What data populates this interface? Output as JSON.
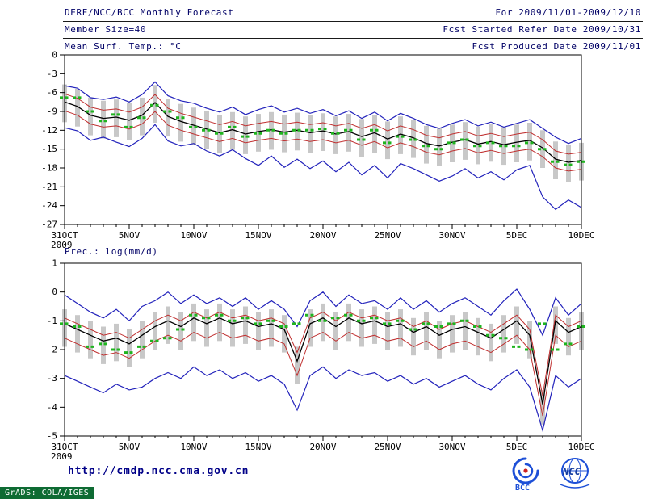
{
  "header": {
    "title": "DERF/NCC/BCC Monthly Forecast",
    "member_size": "Member Size=40",
    "for_range": "For 2009/11/01-2009/12/10",
    "fcst_started": "Fcst Started Refer Date 2009/10/31",
    "fcst_produced": "Fcst Produced Date 2009/11/01"
  },
  "footer": {
    "url": "http://cmdp.ncc.cma.gov.cn",
    "grads_credit": "GrADS: COLA/IGES",
    "logo_bcc": "BCC",
    "logo_ncc": "NCC"
  },
  "colors": {
    "header_text": "#000066",
    "axis": "#000000",
    "ensemble_envelope": "#2222bb",
    "spread_band": "#c03030",
    "ensemble_mean": "#000000",
    "observation": "#1fb41f",
    "spread_bars": "#c8c8c8",
    "url_text": "#000088",
    "grads_bg": "#0e6b33"
  },
  "chart_data": [
    {
      "type": "line",
      "title": "Mean Surf. Temp.: °C",
      "ylim": [
        -27,
        0
      ],
      "yticks": [
        0,
        -3,
        -6,
        -9,
        -12,
        -15,
        -18,
        -21,
        -24,
        -27
      ],
      "x_days": 40,
      "x_tick_days": [
        0,
        5,
        10,
        15,
        20,
        25,
        30,
        35,
        40
      ],
      "x_tick_labels": [
        "31OCT",
        "5NOV",
        "10NOV",
        "15NOV",
        "20NOV",
        "25NOV",
        "30NOV",
        "5DEC",
        "10DEC"
      ],
      "x_year_label": "2009",
      "series": [
        {
          "name": "ensemble-max",
          "color": "#2222bb",
          "width": 1.2,
          "values": [
            -4.9,
            -5.3,
            -6.8,
            -7.1,
            -6.7,
            -7.5,
            -6.3,
            -4.3,
            -6.5,
            -7.3,
            -7.7,
            -8.5,
            -9.1,
            -8.3,
            -9.5,
            -8.7,
            -8.1,
            -9.1,
            -8.5,
            -9.3,
            -8.7,
            -9.7,
            -8.9,
            -10.1,
            -9.1,
            -10.5,
            -9.3,
            -10.1,
            -11.1,
            -11.7,
            -10.9,
            -10.3,
            -11.3,
            -10.7,
            -11.5,
            -10.9,
            -10.3,
            -11.7,
            -13.1,
            -14.1,
            -13.3
          ]
        },
        {
          "name": "upper-spread",
          "color": "#c03030",
          "width": 1,
          "values": [
            -6.2,
            -6.9,
            -8.3,
            -8.8,
            -8.6,
            -9.1,
            -8.3,
            -6.3,
            -8.5,
            -9.3,
            -9.9,
            -10.5,
            -11.1,
            -10.6,
            -11.3,
            -10.9,
            -10.6,
            -11.0,
            -10.7,
            -11.1,
            -10.8,
            -11.3,
            -10.9,
            -11.7,
            -11.1,
            -12.1,
            -11.3,
            -11.9,
            -12.8,
            -13.2,
            -12.6,
            -12.2,
            -12.9,
            -12.5,
            -13.0,
            -12.6,
            -12.3,
            -13.5,
            -15.3,
            -15.8,
            -15.5
          ]
        },
        {
          "name": "ensemble-mean",
          "color": "#000000",
          "width": 1.3,
          "values": [
            -7.5,
            -8.2,
            -9.6,
            -10.1,
            -9.9,
            -10.4,
            -9.6,
            -7.6,
            -9.8,
            -10.6,
            -11.2,
            -11.8,
            -12.4,
            -11.9,
            -12.6,
            -12.2,
            -11.9,
            -12.3,
            -12.0,
            -12.4,
            -12.1,
            -12.6,
            -12.2,
            -13.0,
            -12.4,
            -13.4,
            -12.6,
            -13.2,
            -14.1,
            -14.5,
            -13.9,
            -13.5,
            -14.2,
            -13.8,
            -14.3,
            -13.9,
            -13.6,
            -14.8,
            -16.6,
            -17.1,
            -16.8
          ]
        },
        {
          "name": "lower-spread",
          "color": "#c03030",
          "width": 1,
          "values": [
            -8.9,
            -9.6,
            -11.0,
            -11.5,
            -11.3,
            -11.8,
            -11.0,
            -9.0,
            -11.2,
            -12.0,
            -12.6,
            -13.2,
            -13.8,
            -13.3,
            -14.0,
            -13.6,
            -13.3,
            -13.7,
            -13.4,
            -13.8,
            -13.5,
            -14.0,
            -13.6,
            -14.4,
            -13.8,
            -14.8,
            -14.0,
            -14.6,
            -15.5,
            -15.9,
            -15.3,
            -14.9,
            -15.6,
            -15.2,
            -15.7,
            -15.3,
            -15.0,
            -16.2,
            -18.0,
            -18.5,
            -18.2
          ]
        },
        {
          "name": "ensemble-min",
          "color": "#2222bb",
          "width": 1.2,
          "values": [
            -11.6,
            -12.1,
            -13.6,
            -13.1,
            -13.9,
            -14.6,
            -13.3,
            -11.1,
            -13.7,
            -14.5,
            -14.1,
            -15.3,
            -16.1,
            -15.1,
            -16.5,
            -17.6,
            -16.1,
            -17.9,
            -16.6,
            -18.1,
            -16.9,
            -18.6,
            -17.1,
            -19.1,
            -17.6,
            -19.6,
            -17.3,
            -18.1,
            -19.1,
            -20.1,
            -19.3,
            -18.1,
            -19.6,
            -18.6,
            -19.9,
            -18.3,
            -17.6,
            -22.6,
            -24.6,
            -23.1,
            -24.3
          ]
        }
      ],
      "obs_dashes": {
        "name": "observation",
        "color": "#1fb41f",
        "values": [
          -6.8,
          -6.8,
          -9.0,
          -10.5,
          -9.5,
          -11.5,
          -10.0,
          -8.0,
          -9.0,
          -10.0,
          -11.5,
          -12.0,
          -12.5,
          -11.5,
          -13.0,
          -12.5,
          -12.0,
          -12.5,
          -12.0,
          -12.0,
          -11.8,
          -12.5,
          -12.0,
          -13.5,
          -12.0,
          -14.0,
          -13.0,
          -13.5,
          -14.5,
          -15.0,
          -14.0,
          -13.5,
          -14.5,
          -14.0,
          -14.5,
          -14.5,
          -14.0,
          -15.0,
          -17.0,
          -17.5,
          -17.0
        ]
      },
      "spread_bars": {
        "color": "#c8c8c8",
        "top": [
          -4.7,
          -5.4,
          -6.8,
          -7.3,
          -7.1,
          -7.6,
          -6.8,
          -4.8,
          -7.0,
          -7.8,
          -8.4,
          -9.0,
          -9.6,
          -9.1,
          -9.8,
          -9.4,
          -9.1,
          -9.5,
          -9.2,
          -9.6,
          -9.3,
          -9.8,
          -9.4,
          -10.2,
          -9.6,
          -10.6,
          -9.8,
          -10.4,
          -11.3,
          -11.7,
          -11.1,
          -10.7,
          -11.4,
          -11.0,
          -11.5,
          -11.1,
          -10.8,
          -12.0,
          -13.8,
          -14.3,
          -14.0
        ],
        "bottom": [
          -10.7,
          -11.4,
          -12.8,
          -13.3,
          -13.1,
          -13.6,
          -12.8,
          -10.8,
          -13.0,
          -13.8,
          -14.4,
          -15.0,
          -15.6,
          -15.1,
          -15.8,
          -15.4,
          -15.1,
          -15.5,
          -15.2,
          -15.6,
          -15.3,
          -15.8,
          -15.4,
          -16.2,
          -15.6,
          -16.6,
          -15.8,
          -16.4,
          -17.3,
          -17.7,
          -17.1,
          -16.7,
          -17.4,
          -17.0,
          -17.5,
          -17.1,
          -16.8,
          -18.0,
          -19.8,
          -20.3,
          -20.0
        ]
      }
    },
    {
      "type": "line",
      "title": "Prec.: log(mm/d)",
      "ylim": [
        -5,
        1
      ],
      "yticks": [
        1,
        0,
        -1,
        -2,
        -3,
        -4,
        -5
      ],
      "x_days": 40,
      "x_tick_days": [
        0,
        5,
        10,
        15,
        20,
        25,
        30,
        35,
        40
      ],
      "x_tick_labels": [
        "31OCT",
        "5NOV",
        "10NOV",
        "15NOV",
        "20NOV",
        "25NOV",
        "30NOV",
        "5DEC",
        "10DEC"
      ],
      "x_year_label": "2009",
      "series": [
        {
          "name": "ensemble-max",
          "color": "#2222bb",
          "width": 1.2,
          "values": [
            -0.1,
            -0.4,
            -0.7,
            -0.9,
            -0.6,
            -1.0,
            -0.5,
            -0.3,
            0.0,
            -0.4,
            -0.1,
            -0.4,
            -0.2,
            -0.5,
            -0.2,
            -0.6,
            -0.3,
            -0.6,
            -1.2,
            -0.3,
            0.0,
            -0.5,
            -0.1,
            -0.4,
            -0.3,
            -0.6,
            -0.2,
            -0.6,
            -0.3,
            -0.7,
            -0.4,
            -0.2,
            -0.5,
            -0.8,
            -0.3,
            0.1,
            -0.6,
            -1.5,
            -0.2,
            -0.8,
            -0.4
          ]
        },
        {
          "name": "upper-spread",
          "color": "#c03030",
          "width": 1,
          "values": [
            -0.9,
            -1.1,
            -1.3,
            -1.5,
            -1.4,
            -1.6,
            -1.3,
            -1.0,
            -0.8,
            -1.0,
            -0.7,
            -0.9,
            -0.7,
            -0.9,
            -0.8,
            -1.0,
            -0.9,
            -1.1,
            -2.1,
            -0.9,
            -0.7,
            -1.0,
            -0.7,
            -0.9,
            -0.8,
            -1.0,
            -0.9,
            -1.2,
            -1.0,
            -1.3,
            -1.1,
            -1.0,
            -1.2,
            -1.4,
            -1.1,
            -0.8,
            -1.3,
            -3.6,
            -0.8,
            -1.2,
            -1.0
          ]
        },
        {
          "name": "ensemble-mean",
          "color": "#000000",
          "width": 1.3,
          "values": [
            -1.1,
            -1.3,
            -1.5,
            -1.7,
            -1.6,
            -1.8,
            -1.5,
            -1.2,
            -1.0,
            -1.2,
            -0.9,
            -1.1,
            -0.9,
            -1.1,
            -1.0,
            -1.2,
            -1.1,
            -1.3,
            -2.4,
            -1.1,
            -0.9,
            -1.2,
            -0.9,
            -1.1,
            -1.0,
            -1.2,
            -1.1,
            -1.4,
            -1.2,
            -1.5,
            -1.3,
            -1.2,
            -1.4,
            -1.6,
            -1.3,
            -1.0,
            -1.5,
            -3.9,
            -1.0,
            -1.4,
            -1.2
          ]
        },
        {
          "name": "lower-spread",
          "color": "#c03030",
          "width": 1,
          "values": [
            -1.6,
            -1.8,
            -2.0,
            -2.2,
            -2.1,
            -2.3,
            -2.0,
            -1.7,
            -1.5,
            -1.7,
            -1.4,
            -1.6,
            -1.4,
            -1.6,
            -1.5,
            -1.7,
            -1.6,
            -1.8,
            -2.9,
            -1.6,
            -1.4,
            -1.7,
            -1.4,
            -1.6,
            -1.5,
            -1.7,
            -1.6,
            -1.9,
            -1.7,
            -2.0,
            -1.8,
            -1.7,
            -1.9,
            -2.1,
            -1.8,
            -1.5,
            -2.0,
            -4.3,
            -1.5,
            -1.9,
            -1.7
          ]
        },
        {
          "name": "ensemble-min",
          "color": "#2222bb",
          "width": 1.2,
          "values": [
            -2.9,
            -3.1,
            -3.3,
            -3.5,
            -3.2,
            -3.4,
            -3.3,
            -3.0,
            -2.8,
            -3.0,
            -2.6,
            -2.9,
            -2.7,
            -3.0,
            -2.8,
            -3.1,
            -2.9,
            -3.2,
            -4.1,
            -2.9,
            -2.6,
            -3.0,
            -2.7,
            -2.9,
            -2.8,
            -3.1,
            -2.9,
            -3.2,
            -3.0,
            -3.3,
            -3.1,
            -2.9,
            -3.2,
            -3.4,
            -3.0,
            -2.7,
            -3.3,
            -4.8,
            -2.9,
            -3.3,
            -3.0
          ]
        }
      ],
      "obs_dashes": {
        "name": "observation",
        "color": "#1fb41f",
        "values": [
          -1.1,
          -1.2,
          -1.9,
          -1.8,
          -2.0,
          -2.1,
          -1.9,
          -1.7,
          -1.6,
          -1.3,
          -0.8,
          -0.9,
          -0.8,
          -1.0,
          -0.9,
          -1.1,
          -1.0,
          -1.2,
          -1.1,
          -0.8,
          -1.0,
          -0.9,
          -0.8,
          -1.0,
          -0.9,
          -1.1,
          -1.0,
          -1.3,
          -1.1,
          -1.2,
          -1.1,
          -1.0,
          -1.2,
          -1.5,
          -1.6,
          -1.9,
          -2.0,
          -1.1,
          -2.0,
          -1.8,
          -1.2
        ]
      },
      "spread_bars": {
        "color": "#c8c8c8",
        "top": [
          -0.6,
          -0.8,
          -1.0,
          -1.2,
          -1.1,
          -1.3,
          -1.0,
          -0.7,
          -0.5,
          -0.7,
          -0.4,
          -0.6,
          -0.4,
          -0.6,
          -0.5,
          -0.7,
          -0.6,
          -0.8,
          -1.9,
          -0.6,
          -0.4,
          -0.7,
          -0.4,
          -0.6,
          -0.5,
          -0.7,
          -0.6,
          -0.9,
          -0.7,
          -1.0,
          -0.8,
          -0.7,
          -0.9,
          -1.1,
          -0.8,
          -0.5,
          -1.0,
          -3.4,
          -0.5,
          -0.9,
          -0.7
        ],
        "bottom": [
          -1.9,
          -2.1,
          -2.3,
          -2.5,
          -2.4,
          -2.6,
          -2.3,
          -2.0,
          -1.8,
          -2.0,
          -1.7,
          -1.9,
          -1.7,
          -1.9,
          -1.8,
          -2.0,
          -1.9,
          -2.1,
          -3.2,
          -1.9,
          -1.7,
          -2.0,
          -1.7,
          -1.9,
          -1.8,
          -2.0,
          -1.9,
          -2.2,
          -2.0,
          -2.3,
          -2.1,
          -2.0,
          -2.2,
          -2.4,
          -2.1,
          -1.8,
          -2.3,
          -4.6,
          -1.8,
          -2.2,
          -2.0
        ]
      }
    }
  ]
}
